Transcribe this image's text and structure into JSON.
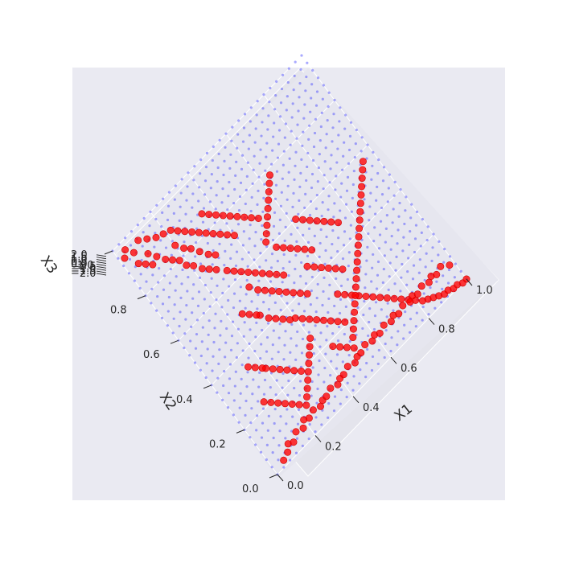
{
  "chart_data": {
    "type": "scatter3d",
    "title": "",
    "xlabel": "X1",
    "ylabel": "X2",
    "zlabel": "X3",
    "xlim": [
      0.0,
      1.0
    ],
    "ylim": [
      0.0,
      1.0
    ],
    "zlim": [
      -2.0,
      2.0
    ],
    "x_ticks": [
      "0.0",
      "0.2",
      "0.4",
      "0.6",
      "0.8",
      "1.0"
    ],
    "y_ticks": [
      "0.0",
      "0.2",
      "0.4",
      "0.6",
      "0.8",
      "1.0"
    ],
    "z_ticks": [
      "−2.0",
      "−1.5",
      "−1.0",
      "−0.5",
      "0.0",
      "0.5",
      "1.0",
      "1.5",
      "2.0"
    ],
    "grid": true,
    "background_color": "#eaeaf2",
    "series": [
      {
        "marker": "small-dots",
        "color": "#4040ff",
        "grid_resolution": 30,
        "surface_x_range": [
          0.0,
          1.0
        ],
        "surface_y_range": [
          0.0,
          1.0
        ]
      },
      {
        "marker": "filled-circles",
        "color": "#ff0000",
        "approx_points": [
          [
            0.02,
            0.95
          ],
          [
            0.04,
            0.97
          ],
          [
            0.06,
            0.94
          ],
          [
            0.05,
            0.9
          ],
          [
            0.07,
            0.88
          ],
          [
            0.09,
            0.86
          ],
          [
            0.1,
            0.9
          ],
          [
            0.12,
            0.87
          ],
          [
            0.14,
            0.84
          ],
          [
            0.16,
            0.82
          ],
          [
            0.18,
            0.8
          ],
          [
            0.19,
            0.77
          ],
          [
            0.21,
            0.75
          ],
          [
            0.23,
            0.72
          ],
          [
            0.25,
            0.7
          ],
          [
            0.27,
            0.68
          ],
          [
            0.2,
            0.85
          ],
          [
            0.22,
            0.82
          ],
          [
            0.24,
            0.8
          ],
          [
            0.26,
            0.77
          ],
          [
            0.28,
            0.74
          ],
          [
            0.3,
            0.72
          ],
          [
            0.1,
            0.96
          ],
          [
            0.13,
            0.94
          ],
          [
            0.16,
            0.92
          ],
          [
            0.19,
            0.91
          ],
          [
            0.22,
            0.9
          ],
          [
            0.24,
            0.88
          ],
          [
            0.26,
            0.86
          ],
          [
            0.28,
            0.84
          ],
          [
            0.3,
            0.82
          ],
          [
            0.32,
            0.8
          ],
          [
            0.34,
            0.78
          ],
          [
            0.36,
            0.76
          ],
          [
            0.38,
            0.74
          ],
          [
            0.4,
            0.72
          ],
          [
            0.35,
            0.86
          ],
          [
            0.37,
            0.84
          ],
          [
            0.39,
            0.82
          ],
          [
            0.41,
            0.8
          ],
          [
            0.43,
            0.78
          ],
          [
            0.45,
            0.76
          ],
          [
            0.47,
            0.74
          ],
          [
            0.49,
            0.72
          ],
          [
            0.51,
            0.7
          ],
          [
            0.3,
            0.65
          ],
          [
            0.32,
            0.63
          ],
          [
            0.34,
            0.61
          ],
          [
            0.36,
            0.59
          ],
          [
            0.38,
            0.57
          ],
          [
            0.4,
            0.55
          ],
          [
            0.42,
            0.53
          ],
          [
            0.44,
            0.51
          ],
          [
            0.46,
            0.49
          ],
          [
            0.33,
            0.55
          ],
          [
            0.35,
            0.52
          ],
          [
            0.37,
            0.5
          ],
          [
            0.39,
            0.48
          ],
          [
            0.41,
            0.46
          ],
          [
            0.43,
            0.44
          ],
          [
            0.45,
            0.42
          ],
          [
            0.47,
            0.4
          ],
          [
            0.49,
            0.38
          ],
          [
            0.5,
            0.58
          ],
          [
            0.52,
            0.56
          ],
          [
            0.54,
            0.54
          ],
          [
            0.56,
            0.52
          ],
          [
            0.58,
            0.5
          ],
          [
            0.6,
            0.48
          ],
          [
            0.48,
            0.62
          ],
          [
            0.5,
            0.64
          ],
          [
            0.52,
            0.66
          ],
          [
            0.54,
            0.68
          ],
          [
            0.56,
            0.7
          ],
          [
            0.58,
            0.72
          ],
          [
            0.6,
            0.74
          ],
          [
            0.62,
            0.76
          ],
          [
            0.64,
            0.78
          ],
          [
            0.4,
            0.35
          ],
          [
            0.42,
            0.33
          ],
          [
            0.44,
            0.31
          ],
          [
            0.46,
            0.29
          ],
          [
            0.48,
            0.27
          ],
          [
            0.5,
            0.25
          ],
          [
            0.52,
            0.23
          ],
          [
            0.54,
            0.21
          ],
          [
            0.3,
            0.45
          ],
          [
            0.32,
            0.42
          ],
          [
            0.34,
            0.4
          ],
          [
            0.36,
            0.38
          ],
          [
            0.38,
            0.36
          ],
          [
            0.25,
            0.5
          ],
          [
            0.27,
            0.48
          ],
          [
            0.29,
            0.46
          ],
          [
            0.55,
            0.45
          ],
          [
            0.57,
            0.43
          ],
          [
            0.59,
            0.41
          ],
          [
            0.61,
            0.39
          ],
          [
            0.63,
            0.37
          ],
          [
            0.65,
            0.35
          ],
          [
            0.62,
            0.6
          ],
          [
            0.64,
            0.58
          ],
          [
            0.66,
            0.56
          ],
          [
            0.68,
            0.54
          ],
          [
            0.7,
            0.52
          ],
          [
            0.72,
            0.5
          ],
          [
            0.74,
            0.48
          ],
          [
            0.58,
            0.3
          ],
          [
            0.6,
            0.28
          ],
          [
            0.62,
            0.26
          ],
          [
            0.64,
            0.24
          ],
          [
            0.66,
            0.22
          ],
          [
            0.68,
            0.2
          ],
          [
            0.7,
            0.18
          ],
          [
            0.72,
            0.16
          ],
          [
            0.74,
            0.14
          ],
          [
            0.76,
            0.12
          ],
          [
            0.78,
            0.1
          ],
          [
            0.8,
            0.08
          ],
          [
            0.82,
            0.06
          ],
          [
            0.84,
            0.05
          ],
          [
            0.86,
            0.04
          ],
          [
            0.88,
            0.03
          ],
          [
            0.9,
            0.02
          ],
          [
            0.92,
            0.02
          ],
          [
            0.94,
            0.01
          ],
          [
            0.96,
            0.01
          ],
          [
            0.98,
            0.0
          ],
          [
            1.0,
            0.0
          ],
          [
            0.1,
            0.05
          ],
          [
            0.15,
            0.06
          ],
          [
            0.2,
            0.07
          ],
          [
            0.25,
            0.07
          ],
          [
            0.3,
            0.07
          ],
          [
            0.35,
            0.08
          ],
          [
            0.4,
            0.08
          ],
          [
            0.45,
            0.09
          ],
          [
            0.5,
            0.09
          ],
          [
            0.55,
            0.1
          ],
          [
            0.6,
            0.1
          ],
          [
            0.65,
            0.1
          ],
          [
            0.7,
            0.1
          ],
          [
            0.75,
            0.1
          ],
          [
            0.8,
            0.1
          ],
          [
            0.85,
            0.1
          ],
          [
            0.9,
            0.1
          ],
          [
            0.95,
            0.1
          ],
          [
            0.98,
            0.08
          ],
          [
            0.05,
            0.02
          ],
          [
            0.08,
            0.03
          ],
          [
            0.12,
            0.04
          ],
          [
            0.18,
            0.05
          ],
          [
            0.22,
            0.06
          ],
          [
            0.28,
            0.06
          ],
          [
            0.32,
            0.07
          ],
          [
            0.38,
            0.07
          ],
          [
            0.42,
            0.08
          ],
          [
            0.48,
            0.08
          ],
          [
            0.52,
            0.09
          ],
          [
            0.58,
            0.09
          ],
          [
            0.62,
            0.09
          ],
          [
            0.68,
            0.09
          ],
          [
            0.72,
            0.09
          ],
          [
            0.78,
            0.09
          ],
          [
            0.82,
            0.09
          ],
          [
            0.88,
            0.09
          ],
          [
            0.92,
            0.09
          ],
          [
            0.12,
            0.22
          ],
          [
            0.14,
            0.2
          ],
          [
            0.16,
            0.18
          ],
          [
            0.18,
            0.16
          ],
          [
            0.2,
            0.14
          ],
          [
            0.22,
            0.12
          ],
          [
            0.24,
            0.1
          ],
          [
            0.26,
            0.12
          ],
          [
            0.28,
            0.14
          ],
          [
            0.3,
            0.16
          ],
          [
            0.32,
            0.18
          ],
          [
            0.34,
            0.2
          ],
          [
            0.36,
            0.22
          ],
          [
            0.38,
            0.24
          ],
          [
            0.4,
            0.26
          ],
          [
            0.2,
            0.3
          ],
          [
            0.22,
            0.28
          ],
          [
            0.24,
            0.26
          ],
          [
            0.26,
            0.24
          ],
          [
            0.28,
            0.22
          ],
          [
            0.3,
            0.2
          ],
          [
            0.15,
            0.35
          ],
          [
            0.17,
            0.33
          ],
          [
            0.19,
            0.31
          ],
          [
            0.45,
            0.18
          ],
          [
            0.47,
            0.16
          ],
          [
            0.49,
            0.14
          ],
          [
            0.51,
            0.12
          ],
          [
            0.53,
            0.15
          ],
          [
            0.55,
            0.17
          ],
          [
            0.57,
            0.19
          ],
          [
            0.59,
            0.21
          ],
          [
            0.61,
            0.23
          ],
          [
            0.63,
            0.25
          ],
          [
            0.65,
            0.27
          ],
          [
            0.67,
            0.29
          ],
          [
            0.69,
            0.31
          ],
          [
            0.71,
            0.33
          ],
          [
            0.73,
            0.35
          ],
          [
            0.75,
            0.37
          ],
          [
            0.77,
            0.39
          ],
          [
            0.79,
            0.41
          ],
          [
            0.81,
            0.43
          ],
          [
            0.83,
            0.45
          ],
          [
            0.85,
            0.47
          ],
          [
            0.87,
            0.49
          ],
          [
            0.89,
            0.51
          ],
          [
            0.91,
            0.53
          ],
          [
            0.93,
            0.55
          ],
          [
            0.95,
            0.57
          ]
        ]
      }
    ]
  }
}
